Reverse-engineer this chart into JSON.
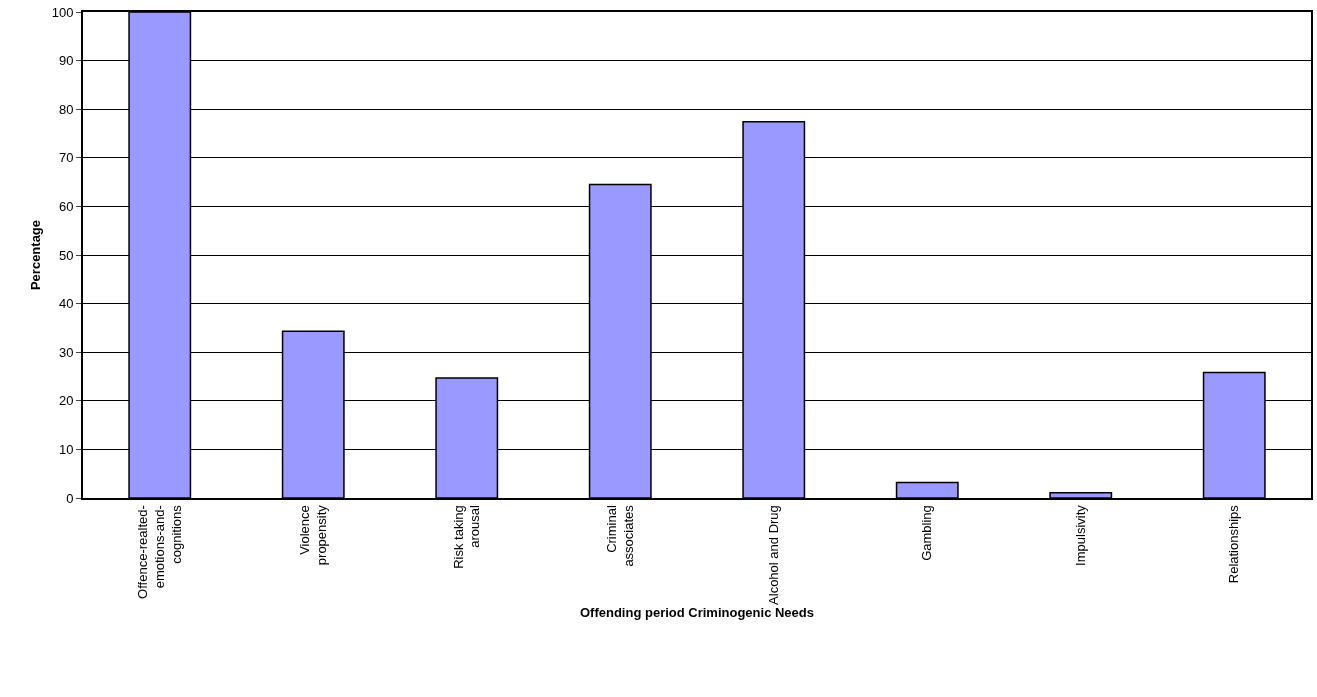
{
  "chart_data": {
    "type": "bar",
    "xlabel": "Offending period Criminogenic Needs",
    "ylabel": "Percentage",
    "categories": [
      "Offence-realted-\nemotions-and-\ncognitions",
      "Violence\npropensity",
      "Risk taking\narousal",
      "Criminal\nassociates",
      "Alcohol and Drug",
      "Gambling",
      "Impulsivity",
      "Relationships"
    ],
    "values": [
      100,
      34.3,
      24.7,
      64.5,
      77.4,
      3.2,
      1.1,
      25.8
    ],
    "color": "#9999ff",
    "ylim": [
      0,
      100
    ],
    "yticks": [
      0,
      10,
      20,
      30,
      40,
      50,
      60,
      70,
      80,
      90,
      100
    ],
    "grid": "y",
    "legend": false
  }
}
